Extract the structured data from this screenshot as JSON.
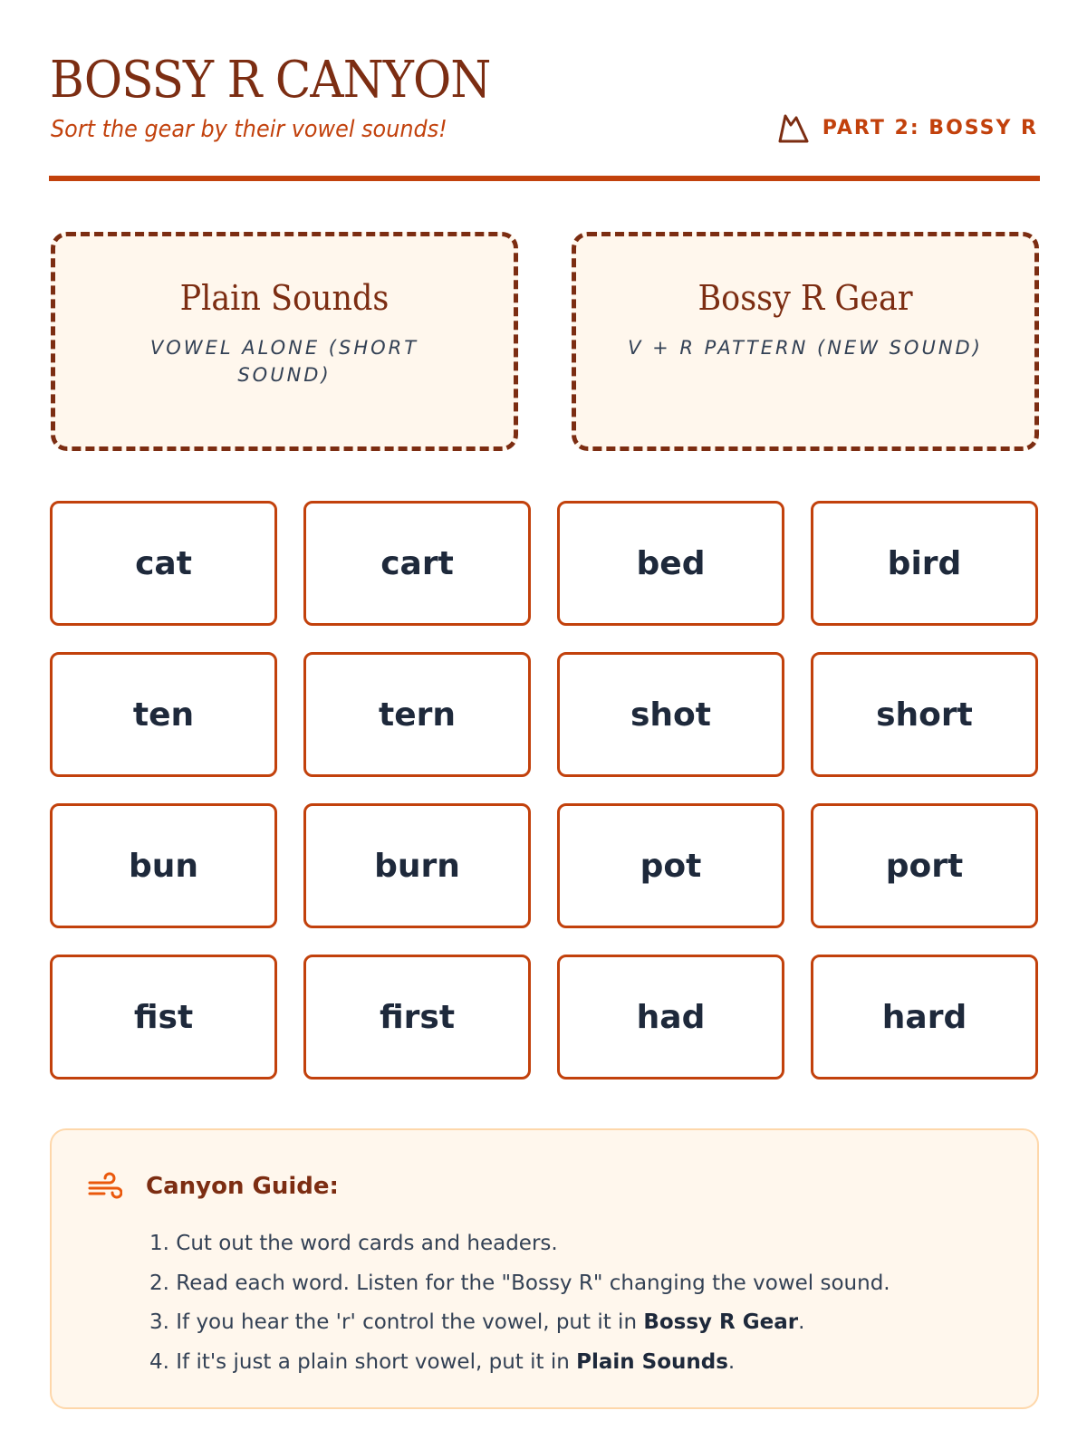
{
  "header": {
    "title": "BOSSY R CANYON",
    "subtitle": "Sort the gear by their vowel sounds!",
    "part_label": "PART 2: BOSSY R",
    "part_icon": "mountain-icon"
  },
  "zones": [
    {
      "title": "Plain Sounds",
      "subtitle": "VOWEL ALONE (SHORT SOUND)"
    },
    {
      "title": "Bossy R Gear",
      "subtitle": "V + R PATTERN (NEW SOUND)"
    }
  ],
  "cards": [
    "cat",
    "cart",
    "bed",
    "bird",
    "ten",
    "tern",
    "shot",
    "short",
    "bun",
    "burn",
    "pot",
    "port",
    "fist",
    "first",
    "had",
    "hard"
  ],
  "guide": {
    "icon": "wind-icon",
    "title": "Canyon Guide:",
    "steps": [
      {
        "text": "1. Cut out the word cards and headers."
      },
      {
        "text": "2. Read each word. Listen for the \"Bossy R\" changing the vowel sound."
      },
      {
        "text": "3. If you hear the 'r' control the vowel, put it in ",
        "bold": "Bossy R Gear",
        "end": "."
      },
      {
        "text": "4. If it's just a plain short vowel, put it in ",
        "bold": "Plain Sounds",
        "end": "."
      }
    ]
  },
  "colors": {
    "primary": "#c2410c",
    "dark": "#7c2d12",
    "panel": "#fff7ed",
    "text": "#1e293b"
  }
}
